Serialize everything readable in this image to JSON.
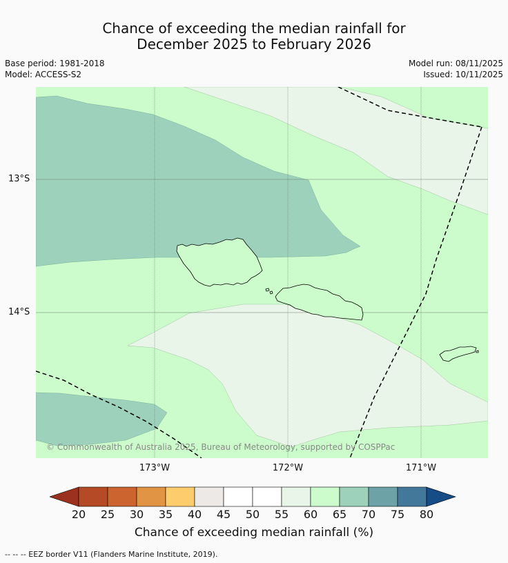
{
  "title": {
    "line1": "Chance of exceeding the median rainfall for",
    "line2": "December 2025 to February 2026"
  },
  "meta": {
    "base_period": "Base period: 1981-2018",
    "model": "Model: ACCESS-S2",
    "model_run": "Model run: 08/11/2025",
    "issued": "Issued: 10/11/2025"
  },
  "map": {
    "lat_labels": [
      "13°S",
      "14°S"
    ],
    "lon_labels": [
      "173°W",
      "172°W",
      "171°W"
    ],
    "copyright": "© Commonwealth of Australia 2025, Bureau of Meteorology, supported by COSPPac",
    "zones": [
      {
        "name": "55-60%",
        "color": "#e9f5e9"
      },
      {
        "name": "60-65%",
        "color": "#ccfccc"
      },
      {
        "name": "65-70%",
        "color": "#9dd1bb"
      }
    ],
    "coastline_color": "#000000",
    "eez_color": "#000000"
  },
  "colorbar": {
    "colors": [
      "#9c3120",
      "#b44a26",
      "#cc6430",
      "#e09444",
      "#fdcc6c",
      "#ece9e6",
      "#ffffff",
      "#ffffff",
      "#e9f5e9",
      "#ccfccc",
      "#9dd1bb",
      "#6da3a6",
      "#44789a",
      "#174c86"
    ],
    "labels": [
      "20",
      "25",
      "30",
      "35",
      "40",
      "45",
      "50",
      "55",
      "60",
      "65",
      "70",
      "75",
      "80"
    ],
    "title": "Chance of exceeding median rainfall (%)"
  },
  "footnote": "-- -- -- EEZ border V11 (Flanders Marine Institute, 2019)."
}
